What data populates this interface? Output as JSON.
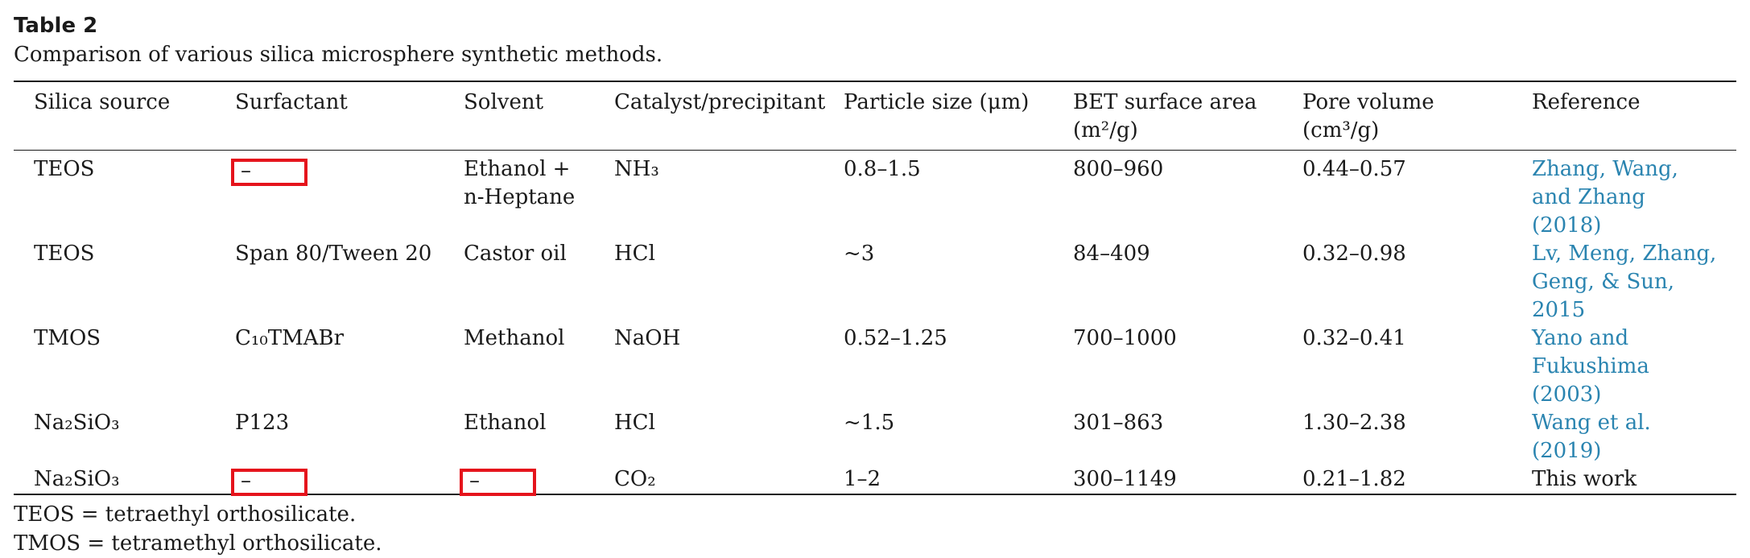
{
  "table": {
    "title": "Table 2",
    "caption": "Comparison of various silica microsphere synthetic methods.",
    "headers": [
      "Silica source",
      "Surfactant",
      "Solvent",
      "Catalyst/precipitant",
      "Particle size (μm)",
      "BET surface area",
      "Pore volume",
      "Reference"
    ],
    "header_units": {
      "bet": "(m²/g)",
      "pore": "(cm³/g)"
    },
    "rows": [
      {
        "source": "TEOS",
        "surfactant": "–",
        "solvent": "Ethanol + n-Heptane",
        "catalyst": "NH₃",
        "size": "0.8–1.5",
        "bet": "800–960",
        "pore": "0.44–0.57",
        "reference": "Zhang, Wang, and Zhang (2018)"
      },
      {
        "source": "TEOS",
        "surfactant": "Span 80/Tween 20",
        "solvent": "Castor oil",
        "catalyst": "HCl",
        "size": "~3",
        "bet": "84–409",
        "pore": "0.32–0.98",
        "reference": "Lv, Meng, Zhang, Geng, & Sun, 2015"
      },
      {
        "source": "TMOS",
        "surfactant": "C₁₀TMABr",
        "solvent": "Methanol",
        "catalyst": "NaOH",
        "size": "0.52–1.25",
        "bet": "700–1000",
        "pore": "0.32–0.41",
        "reference": "Yano and Fukushima (2003)"
      },
      {
        "source": "Na₂SiO₃",
        "surfactant": "P123",
        "solvent": "Ethanol",
        "catalyst": "HCl",
        "size": "~1.5",
        "bet": "301–863",
        "pore": "1.30–2.38",
        "reference": "Wang et al. (2019)"
      },
      {
        "source": "Na₂SiO₃",
        "surfactant": "–",
        "solvent": "–",
        "catalyst": "CO₂",
        "size": "1–2",
        "bet": "300–1149",
        "pore": "0.21–1.82",
        "reference": "This work"
      }
    ],
    "footnotes": [
      "TEOS = tetraethyl orthosilicate.",
      "TMOS = tetramethyl orthosilicate."
    ],
    "highlight_color": "#e5141c",
    "link_color": "#2a84b0"
  }
}
